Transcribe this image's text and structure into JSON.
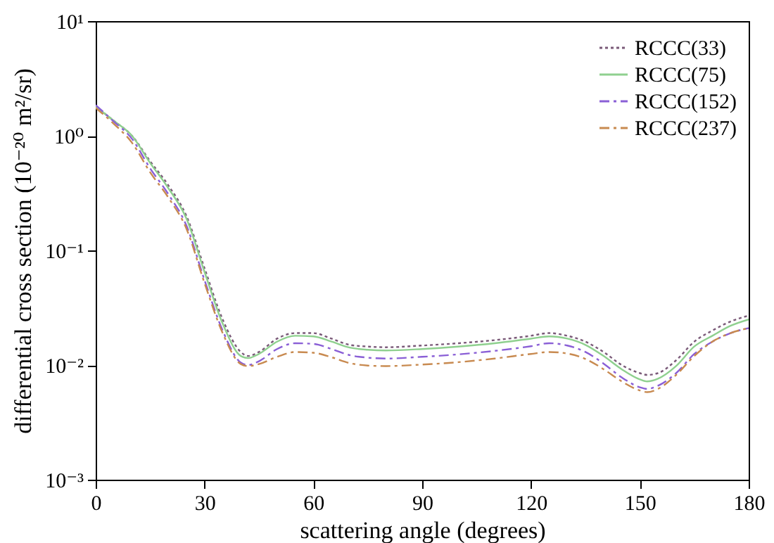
{
  "chart_data": {
    "type": "line",
    "xlabel": "scattering angle (degrees)",
    "ylabel": "differential cross section (10⁻²⁰ m²/sr)",
    "x": [
      0,
      5,
      10,
      15,
      20,
      25,
      30,
      35,
      40,
      42,
      45,
      50,
      55,
      60,
      65,
      70,
      75,
      80,
      90,
      100,
      110,
      120,
      125,
      130,
      135,
      140,
      145,
      150,
      152,
      155,
      160,
      165,
      170,
      175,
      180
    ],
    "series": [
      {
        "name": "RCCC(33)",
        "color": "#7a5a78",
        "line_style": "dotted",
        "values": [
          1.8,
          1.35,
          1.0,
          0.6,
          0.37,
          0.2,
          0.07,
          0.025,
          0.013,
          0.012,
          0.013,
          0.017,
          0.019,
          0.019,
          0.017,
          0.015,
          0.0145,
          0.0143,
          0.0148,
          0.0155,
          0.0165,
          0.018,
          0.019,
          0.018,
          0.016,
          0.013,
          0.01,
          0.0085,
          0.0082,
          0.0085,
          0.011,
          0.016,
          0.02,
          0.024,
          0.027
        ]
      },
      {
        "name": "RCCC(75)",
        "color": "#8fd08f",
        "line_style": "solid",
        "values": [
          1.8,
          1.35,
          1.0,
          0.58,
          0.35,
          0.19,
          0.065,
          0.023,
          0.012,
          0.0115,
          0.0125,
          0.016,
          0.018,
          0.0178,
          0.016,
          0.0142,
          0.0136,
          0.0134,
          0.0138,
          0.0145,
          0.0155,
          0.017,
          0.0178,
          0.017,
          0.015,
          0.012,
          0.0092,
          0.0075,
          0.0072,
          0.0076,
          0.0098,
          0.0145,
          0.018,
          0.022,
          0.025
        ]
      },
      {
        "name": "RCCC(152)",
        "color": "#8a5fd6",
        "line_style": "dashed",
        "values": [
          1.85,
          1.33,
          0.94,
          0.52,
          0.31,
          0.165,
          0.055,
          0.02,
          0.0105,
          0.01,
          0.0108,
          0.0138,
          0.0155,
          0.0153,
          0.0138,
          0.0122,
          0.0116,
          0.0114,
          0.0118,
          0.0124,
          0.0133,
          0.0146,
          0.0155,
          0.0148,
          0.013,
          0.0103,
          0.0078,
          0.0064,
          0.0062,
          0.0066,
          0.0085,
          0.0125,
          0.016,
          0.019,
          0.021
        ]
      },
      {
        "name": "RCCC(237)",
        "color": "#c88a50",
        "line_style": "dashed",
        "values": [
          1.75,
          1.27,
          0.87,
          0.48,
          0.29,
          0.155,
          0.052,
          0.019,
          0.0102,
          0.0098,
          0.0102,
          0.0118,
          0.013,
          0.0128,
          0.0117,
          0.0104,
          0.0099,
          0.0098,
          0.0101,
          0.0106,
          0.0114,
          0.0125,
          0.013,
          0.0126,
          0.0113,
          0.0092,
          0.0072,
          0.006,
          0.0058,
          0.0062,
          0.0082,
          0.012,
          0.016,
          0.019,
          0.021
        ]
      }
    ],
    "xlim": [
      0,
      180
    ],
    "xticks": [
      0,
      30,
      60,
      90,
      120,
      150,
      180
    ],
    "ylim": [
      0.001,
      10
    ],
    "yticks": [
      {
        "value": 0.001,
        "label": "10⁻³"
      },
      {
        "value": 0.01,
        "label": "10⁻²"
      },
      {
        "value": 0.1,
        "label": "10⁻¹"
      },
      {
        "value": 1,
        "label": "10⁰"
      },
      {
        "value": 10,
        "label": "10¹"
      }
    ],
    "log": true,
    "grid": false,
    "legend": "top right"
  }
}
